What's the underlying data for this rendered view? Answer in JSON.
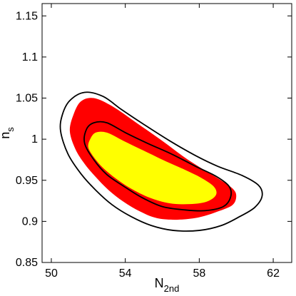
{
  "chart_data": {
    "type": "contour",
    "xlabel": {
      "main": "N",
      "sub": "2nd"
    },
    "ylabel": {
      "main": "n",
      "sub": "s"
    },
    "xlim": [
      49.5,
      63
    ],
    "ylim": [
      0.85,
      1.165
    ],
    "xticks": [
      50,
      54,
      58,
      62
    ],
    "xtick_labels": [
      "50",
      "54",
      "58",
      "62"
    ],
    "yticks": [
      0.85,
      0.9,
      0.95,
      1.0,
      1.05,
      1.1,
      1.15
    ],
    "ytick_labels": [
      "0.85",
      "0.9",
      "0.95",
      "1",
      "1.05",
      "1.1",
      "1.15"
    ],
    "grid": false,
    "regions": [
      {
        "level": "95%",
        "style": "filled",
        "color": "#ff0000",
        "points": [
          [
            51.0,
            1.01
          ],
          [
            51.2,
            1.03
          ],
          [
            51.6,
            1.046
          ],
          [
            52.3,
            1.05
          ],
          [
            53.3,
            1.04
          ],
          [
            54.6,
            1.02
          ],
          [
            56.0,
            0.998
          ],
          [
            57.2,
            0.978
          ],
          [
            58.3,
            0.962
          ],
          [
            59.1,
            0.951
          ],
          [
            59.8,
            0.94
          ],
          [
            60.0,
            0.931
          ],
          [
            59.8,
            0.92
          ],
          [
            59.0,
            0.912
          ],
          [
            58.0,
            0.905
          ],
          [
            56.8,
            0.902
          ],
          [
            55.7,
            0.904
          ],
          [
            54.8,
            0.912
          ],
          [
            53.9,
            0.924
          ],
          [
            53.1,
            0.938
          ],
          [
            52.4,
            0.954
          ],
          [
            51.8,
            0.97
          ],
          [
            51.3,
            0.988
          ]
        ]
      },
      {
        "level": "68%",
        "style": "filled",
        "color": "#ffff00",
        "points": [
          [
            52.0,
            0.99
          ],
          [
            52.1,
            1.0
          ],
          [
            52.4,
            1.008
          ],
          [
            53.0,
            1.008
          ],
          [
            53.9,
            0.998
          ],
          [
            55.0,
            0.986
          ],
          [
            56.2,
            0.973
          ],
          [
            57.2,
            0.963
          ],
          [
            58.1,
            0.953
          ],
          [
            58.8,
            0.942
          ],
          [
            58.9,
            0.932
          ],
          [
            58.4,
            0.924
          ],
          [
            57.5,
            0.921
          ],
          [
            56.4,
            0.922
          ],
          [
            55.3,
            0.929
          ],
          [
            54.3,
            0.94
          ],
          [
            53.5,
            0.952
          ],
          [
            52.8,
            0.965
          ],
          [
            52.3,
            0.978
          ]
        ]
      },
      {
        "level": "95%",
        "style": "outline",
        "color": "#000000",
        "points": [
          [
            50.5,
            1.01
          ],
          [
            50.6,
            1.03
          ],
          [
            51.0,
            1.047
          ],
          [
            51.8,
            1.057
          ],
          [
            52.8,
            1.052
          ],
          [
            53.8,
            1.036
          ],
          [
            55.0,
            1.018
          ],
          [
            56.4,
            0.998
          ],
          [
            57.8,
            0.98
          ],
          [
            59.0,
            0.967
          ],
          [
            60.3,
            0.956
          ],
          [
            61.2,
            0.944
          ],
          [
            61.4,
            0.931
          ],
          [
            61.0,
            0.917
          ],
          [
            60.2,
            0.906
          ],
          [
            59.2,
            0.895
          ],
          [
            58.0,
            0.889
          ],
          [
            56.6,
            0.889
          ],
          [
            55.4,
            0.895
          ],
          [
            54.3,
            0.906
          ],
          [
            53.3,
            0.92
          ],
          [
            52.4,
            0.938
          ],
          [
            51.6,
            0.958
          ],
          [
            50.9,
            0.982
          ]
        ]
      },
      {
        "level": "68%",
        "style": "outline",
        "color": "#000000",
        "points": [
          [
            51.8,
            0.995
          ],
          [
            51.9,
            1.012
          ],
          [
            52.3,
            1.02
          ],
          [
            53.0,
            1.02
          ],
          [
            54.0,
            1.008
          ],
          [
            55.2,
            0.995
          ],
          [
            56.5,
            0.982
          ],
          [
            57.8,
            0.967
          ],
          [
            58.9,
            0.955
          ],
          [
            59.6,
            0.943
          ],
          [
            59.7,
            0.93
          ],
          [
            59.3,
            0.918
          ],
          [
            58.3,
            0.913
          ],
          [
            57.2,
            0.914
          ],
          [
            56.0,
            0.918
          ],
          [
            54.9,
            0.929
          ],
          [
            53.9,
            0.943
          ],
          [
            53.0,
            0.957
          ],
          [
            52.3,
            0.975
          ]
        ]
      }
    ]
  }
}
